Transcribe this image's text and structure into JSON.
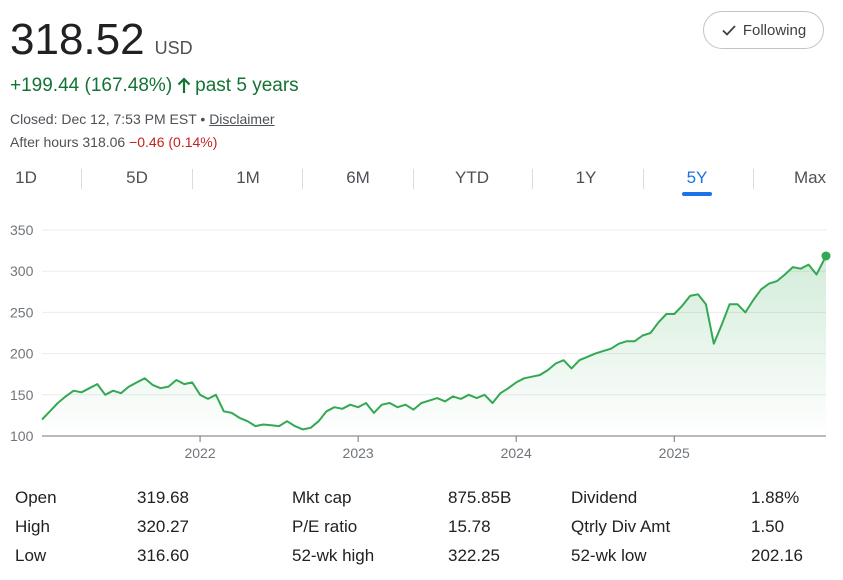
{
  "header": {
    "price": "318.52",
    "currency": "USD",
    "change_text": "+199.44 (167.48%)",
    "change_period": "past 5 years",
    "closed_text": "Closed: Dec 12, 7:53 PM EST",
    "bullet": "•",
    "disclaimer": "Disclaimer",
    "after_hours_label": "After hours 318.06",
    "after_hours_change": "−0.46 (0.14%)",
    "follow_label": "Following"
  },
  "ranges": [
    "1D",
    "5D",
    "1M",
    "6M",
    "YTD",
    "1Y",
    "5Y",
    "Max"
  ],
  "active_range": "5Y",
  "colors": {
    "up": "#137333",
    "line": "#34a853",
    "accent": "#1a73e8",
    "down": "#c5221f"
  },
  "chart_data": {
    "type": "area",
    "ylim": [
      100,
      350
    ],
    "yticks": [
      "100",
      "150",
      "200",
      "250",
      "300",
      "350"
    ],
    "xticks": [
      "2022",
      "2023",
      "2024",
      "2025"
    ],
    "xrange": [
      2021.0,
      2025.96
    ],
    "grid": true,
    "x": [
      2021.0,
      2021.05,
      2021.1,
      2021.15,
      2021.2,
      2021.25,
      2021.3,
      2021.35,
      2021.4,
      2021.45,
      2021.5,
      2021.55,
      2021.6,
      2021.65,
      2021.7,
      2021.75,
      2021.8,
      2021.85,
      2021.9,
      2021.95,
      2022.0,
      2022.05,
      2022.1,
      2022.15,
      2022.2,
      2022.25,
      2022.3,
      2022.35,
      2022.4,
      2022.45,
      2022.5,
      2022.55,
      2022.6,
      2022.65,
      2022.7,
      2022.75,
      2022.8,
      2022.85,
      2022.9,
      2022.95,
      2023.0,
      2023.05,
      2023.1,
      2023.15,
      2023.2,
      2023.25,
      2023.3,
      2023.35,
      2023.4,
      2023.45,
      2023.5,
      2023.55,
      2023.6,
      2023.65,
      2023.7,
      2023.75,
      2023.8,
      2023.85,
      2023.9,
      2023.95,
      2024.0,
      2024.05,
      2024.1,
      2024.15,
      2024.2,
      2024.25,
      2024.3,
      2024.35,
      2024.4,
      2024.45,
      2024.5,
      2024.55,
      2024.6,
      2024.65,
      2024.7,
      2024.75,
      2024.8,
      2024.85,
      2024.9,
      2024.95,
      2025.0,
      2025.05,
      2025.1,
      2025.15,
      2025.2,
      2025.25,
      2025.3,
      2025.35,
      2025.4,
      2025.45,
      2025.5,
      2025.55,
      2025.6,
      2025.65,
      2025.7,
      2025.75,
      2025.8,
      2025.85,
      2025.9,
      2025.96
    ],
    "values": [
      120,
      130,
      140,
      148,
      155,
      153,
      158,
      163,
      150,
      155,
      152,
      160,
      165,
      170,
      162,
      158,
      160,
      168,
      163,
      165,
      150,
      145,
      150,
      130,
      128,
      122,
      118,
      112,
      114,
      113,
      112,
      118,
      112,
      108,
      110,
      118,
      130,
      135,
      133,
      138,
      135,
      140,
      128,
      138,
      140,
      135,
      138,
      132,
      140,
      143,
      146,
      142,
      148,
      145,
      150,
      146,
      150,
      140,
      152,
      158,
      165,
      170,
      172,
      174,
      180,
      188,
      192,
      182,
      192,
      196,
      200,
      203,
      206,
      212,
      215,
      215,
      222,
      225,
      238,
      248,
      248,
      258,
      270,
      272,
      260,
      212,
      235,
      260,
      260,
      250,
      265,
      278,
      285,
      288,
      296,
      305,
      303,
      308,
      296,
      318.52
    ],
    "last_value": 318.52
  },
  "stats": [
    [
      {
        "label": "Open",
        "value": "319.68"
      },
      {
        "label": "Mkt cap",
        "value": "875.85B"
      },
      {
        "label": "Dividend",
        "value": "1.88%"
      }
    ],
    [
      {
        "label": "High",
        "value": "320.27"
      },
      {
        "label": "P/E ratio",
        "value": "15.78"
      },
      {
        "label": "Qtrly Div Amt",
        "value": "1.50"
      }
    ],
    [
      {
        "label": "Low",
        "value": "316.60"
      },
      {
        "label": "52-wk high",
        "value": "322.25"
      },
      {
        "label": "52-wk low",
        "value": "202.16"
      }
    ]
  ]
}
